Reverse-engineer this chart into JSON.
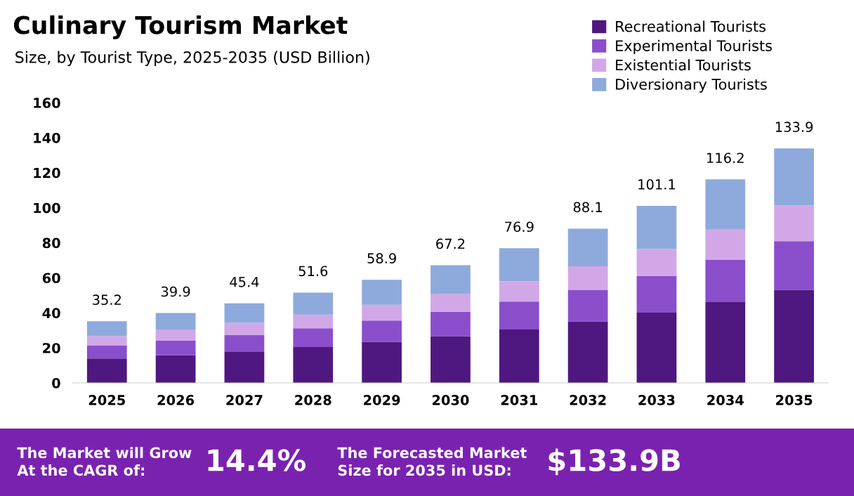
{
  "chart_data": {
    "type": "bar",
    "stacked": true,
    "title": "Culinary Tourism Market",
    "subtitle": "Size, by Tourist Type, 2025-2035 (USD Billion)",
    "categories": [
      "2025",
      "2026",
      "2027",
      "2028",
      "2029",
      "2030",
      "2031",
      "2032",
      "2033",
      "2034",
      "2035"
    ],
    "series": [
      {
        "name": "Recreational Tourists",
        "color": "#4f1780",
        "values": [
          14.0,
          15.8,
          18.0,
          20.5,
          23.4,
          26.7,
          30.5,
          35.0,
          40.1,
          46.1,
          53.2
        ]
      },
      {
        "name": "Experimental Tourists",
        "color": "#8a4ecb",
        "values": [
          7.3,
          8.3,
          9.4,
          10.7,
          12.2,
          13.9,
          15.9,
          18.2,
          20.9,
          24.1,
          27.7
        ]
      },
      {
        "name": "Existential Tourists",
        "color": "#d2a7e8",
        "values": [
          5.4,
          6.1,
          6.9,
          7.8,
          9.0,
          10.2,
          11.7,
          13.4,
          15.4,
          17.7,
          20.4
        ]
      },
      {
        "name": "Diversionary Tourists",
        "color": "#8eaadc",
        "values": [
          8.5,
          9.7,
          11.1,
          12.6,
          14.3,
          16.4,
          18.8,
          21.5,
          24.7,
          28.3,
          32.6
        ]
      }
    ],
    "totals": [
      "35.2",
      "39.9",
      "45.4",
      "51.6",
      "58.9",
      "67.2",
      "76.9",
      "88.1",
      "101.1",
      "116.2",
      "133.9"
    ],
    "ylim": [
      0,
      160
    ],
    "yticks": [
      0,
      20,
      40,
      60,
      80,
      100,
      120,
      140,
      160
    ],
    "grid": false,
    "legend": "top right",
    "annotations": [
      "The Market will Grow\nAt the CAGR of:",
      "14.4%",
      "The Forecasted Market\nSize for 2035 in USD:",
      "$133.9B"
    ]
  }
}
